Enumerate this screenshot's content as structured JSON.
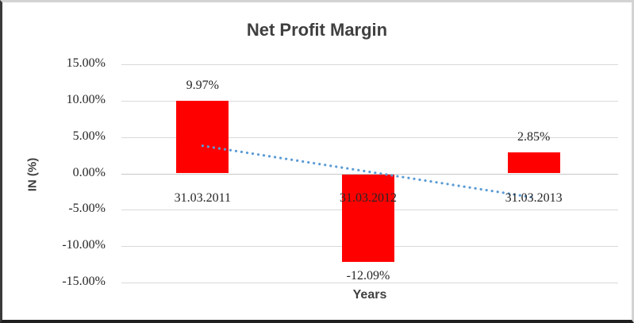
{
  "chart_data": {
    "type": "bar",
    "title": "Net Profit Margin",
    "xlabel": "Years",
    "ylabel": "IN (%)",
    "categories": [
      "31.03.2011",
      "31.03.2012",
      "31.03.2013"
    ],
    "values": [
      9.97,
      -12.09,
      2.85
    ],
    "value_labels": [
      "9.97%",
      "-12.09%",
      "2.85%"
    ],
    "y_ticks": [
      "15.00%",
      "10.00%",
      "5.00%",
      "0.00%",
      "-5.00%",
      "-10.00%",
      "-15.00%"
    ],
    "ylim": [
      -15,
      15
    ],
    "grid": true,
    "legend_position": "none",
    "bar_color": "#FF0000",
    "trendline": {
      "type": "linear",
      "style": "dotted",
      "color": "#5B9BD5",
      "start_value": 3.8,
      "end_value": -3.32
    }
  }
}
